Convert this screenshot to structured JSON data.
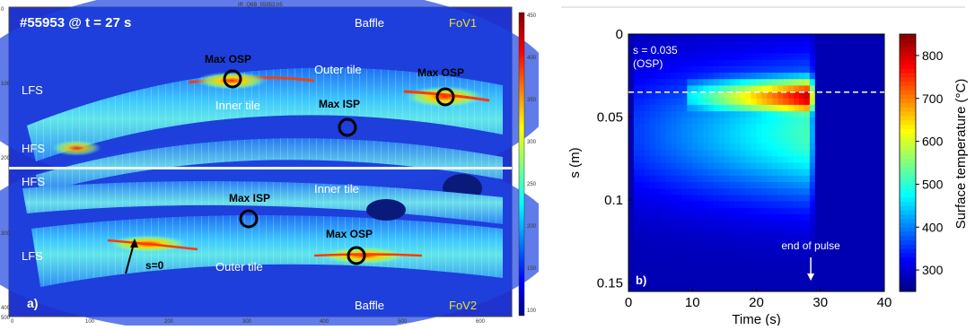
{
  "panel_a": {
    "header": "IR_Q6B_55953.h5",
    "shot_label": "#55953 @ t = 27 s",
    "panel_label": "a)",
    "fov1": "FoV1",
    "fov2": "FoV2",
    "labels": {
      "baffle_top": "Baffle",
      "baffle_bottom": "Baffle",
      "lfs_top": "LFS",
      "hfs_top": "HFS",
      "hfs_bottom": "HFS",
      "lfs_bottom": "LFS",
      "max_osp_1": "Max OSP",
      "max_osp_2": "Max OSP",
      "max_osp_3": "Max OSP",
      "max_isp_1": "Max ISP",
      "max_isp_2": "Max ISP",
      "outer_tile_top": "Outer tile",
      "inner_tile_top": "Inner tile",
      "inner_tile_bottom": "Inner tile",
      "outer_tile_bottom": "Outer tile",
      "s0": "s=0"
    },
    "pixel_ticks_x": [
      "0",
      "100",
      "200",
      "300",
      "400",
      "500",
      "600"
    ],
    "pixel_ticks_y_top": [
      "0",
      "100",
      "200"
    ],
    "pixel_ticks_y_bottom": [
      "300",
      "400",
      "500"
    ],
    "colorbar_ticks": [
      "450",
      "400",
      "350",
      "300",
      "250",
      "200",
      "150",
      "100"
    ]
  },
  "chart_data": {
    "type": "heatmap",
    "panel_label": "b)",
    "xlabel": "Time (s)",
    "ylabel": "s (m)",
    "x_ticks": [
      0,
      10,
      20,
      30,
      40
    ],
    "y_ticks": [
      0,
      0.05,
      0.1,
      0.15
    ],
    "xlim": [
      0,
      40
    ],
    "ylim": [
      0,
      0.155
    ],
    "colorbar": {
      "label": "Surface temperature (°C)",
      "ticks": [
        300,
        400,
        500,
        600,
        700,
        800
      ],
      "range": [
        250,
        850
      ]
    },
    "annotations": {
      "osp_line_value": 0.035,
      "osp_text": "s = 0.035",
      "osp_sub": "(OSP)",
      "end_of_pulse": "end of pulse",
      "end_time": 28.5
    },
    "heat_regions": [
      {
        "t_start": 10,
        "t_end": 28.5,
        "s_center": 0.038,
        "s_halfwidth": 0.012,
        "peak": 820
      },
      {
        "t_start": 2,
        "t_end": 28.5,
        "s_center": 0.06,
        "s_halfwidth": 0.04,
        "peak": 520
      }
    ]
  }
}
